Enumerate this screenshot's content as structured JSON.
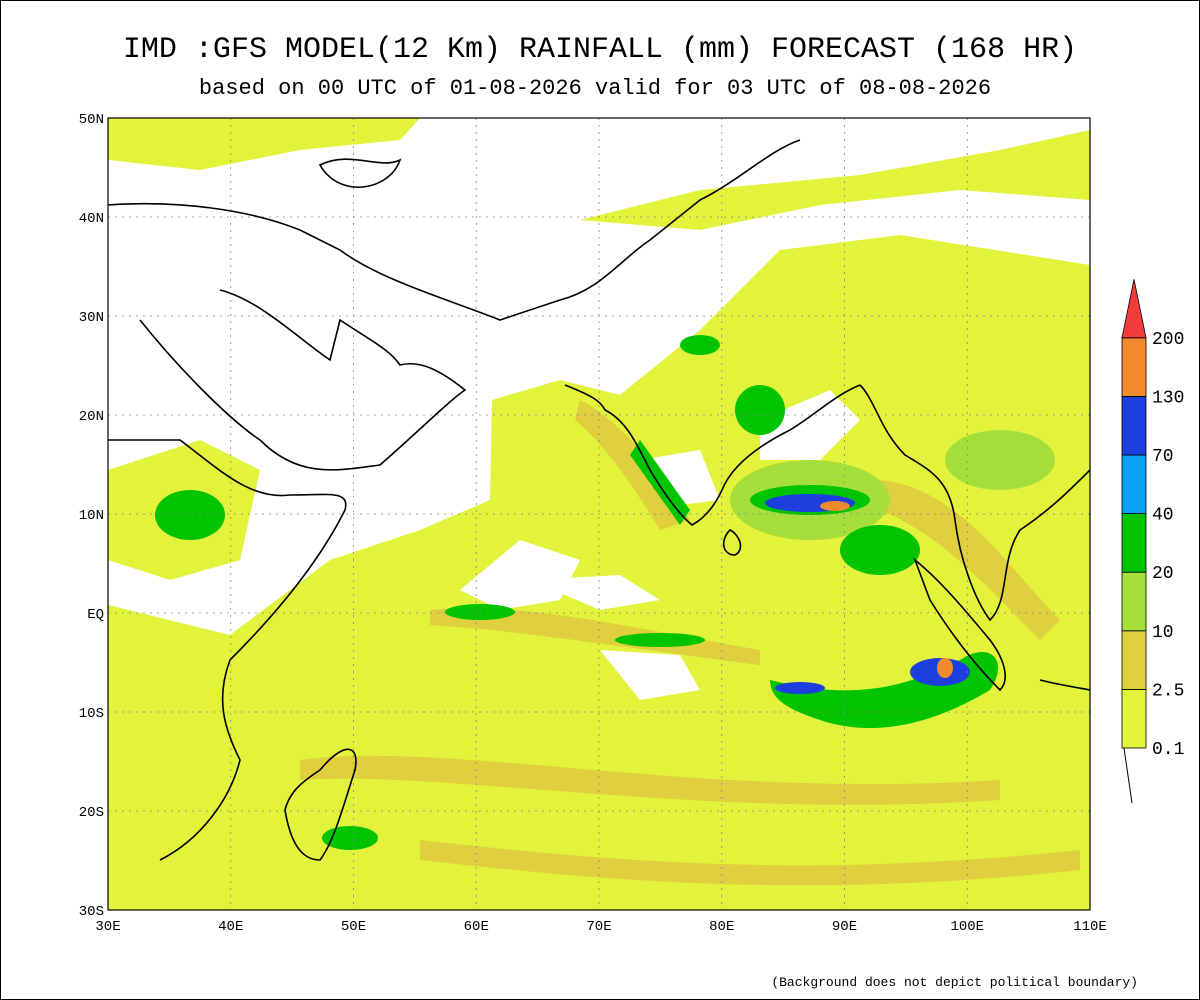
{
  "title": "IMD :GFS MODEL(12 Km) RAINFALL (mm) FORECAST (168 HR)",
  "subtitle": "based on 00 UTC of 01-08-2026 valid for 03 UTC of 08-08-2026",
  "lat_labels": [
    "50N",
    "40N",
    "30N",
    "20N",
    "10N",
    "EQ",
    "10S",
    "20S",
    "30S"
  ],
  "lon_labels": [
    "30E",
    "40E",
    "50E",
    "60E",
    "70E",
    "80E",
    "90E",
    "100E",
    "110E"
  ],
  "legend": {
    "levels": [
      "0.1",
      "2.5",
      "10",
      "20",
      "40",
      "70",
      "130",
      "200"
    ],
    "colors": [
      "#e3f23a",
      "#e0cf3e",
      "#a6df3c",
      "#00c400",
      "#0aa0f5",
      "#1e3fe0",
      "#f08a2c",
      "#f23c3c"
    ]
  },
  "footnote": "(Background does not depict political boundary)"
}
